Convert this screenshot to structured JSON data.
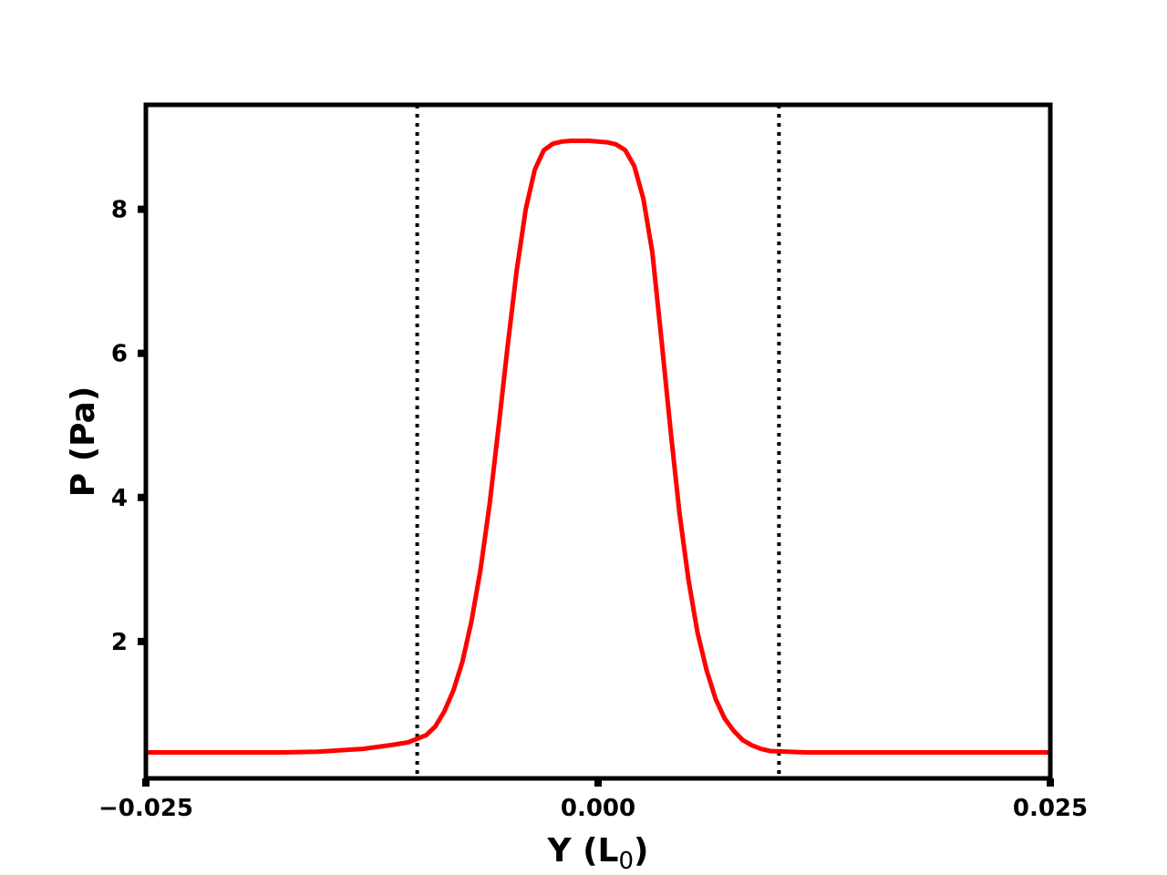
{
  "chart_data": {
    "type": "line",
    "title": "",
    "xlabel": "Y (L",
    "xlabel_sub": "0",
    "xlabel_suffix": ")",
    "ylabel": "P (Pa)",
    "xlim": [
      -0.025,
      0.025
    ],
    "ylim": [
      0.1,
      9.45
    ],
    "x_ticks": [
      -0.025,
      0.0,
      0.025
    ],
    "x_tick_labels": [
      "−0.025",
      "0.000",
      "0.025"
    ],
    "y_ticks": [
      2,
      4,
      6,
      8
    ],
    "y_tick_labels": [
      "2",
      "4",
      "6",
      "8"
    ],
    "grid": false,
    "legend": false,
    "vertical_lines": [
      {
        "x": -0.01,
        "style": "dotted",
        "color": "#000000"
      },
      {
        "x": 0.01,
        "style": "dotted",
        "color": "#000000"
      }
    ],
    "series": [
      {
        "color": "#ff0000",
        "x": [
          -0.025,
          -0.02,
          -0.0175,
          -0.0155,
          -0.013,
          -0.0115,
          -0.0105,
          -0.0095,
          -0.009,
          -0.0085,
          -0.008,
          -0.0075,
          -0.007,
          -0.0065,
          -0.006,
          -0.0055,
          -0.005,
          -0.0045,
          -0.004,
          -0.0035,
          -0.003,
          -0.0025,
          -0.002,
          -0.0015,
          -0.001,
          -0.0005,
          0.0,
          0.0005,
          0.001,
          0.0015,
          0.002,
          0.0025,
          0.003,
          0.0035,
          0.004,
          0.0045,
          0.005,
          0.0055,
          0.006,
          0.0065,
          0.007,
          0.0075,
          0.008,
          0.0085,
          0.009,
          0.0095,
          0.0105,
          0.0115,
          0.013,
          0.0155,
          0.0175,
          0.02,
          0.025
        ],
        "y": [
          0.46,
          0.46,
          0.46,
          0.47,
          0.51,
          0.56,
          0.6,
          0.7,
          0.82,
          1.03,
          1.32,
          1.72,
          2.28,
          3.0,
          3.9,
          4.98,
          6.1,
          7.15,
          8.0,
          8.55,
          8.82,
          8.91,
          8.94,
          8.95,
          8.95,
          8.95,
          8.94,
          8.93,
          8.9,
          8.82,
          8.6,
          8.15,
          7.4,
          6.2,
          4.95,
          3.78,
          2.85,
          2.12,
          1.6,
          1.2,
          0.93,
          0.76,
          0.63,
          0.56,
          0.51,
          0.48,
          0.47,
          0.46,
          0.46,
          0.46,
          0.46,
          0.46,
          0.46
        ]
      }
    ]
  }
}
